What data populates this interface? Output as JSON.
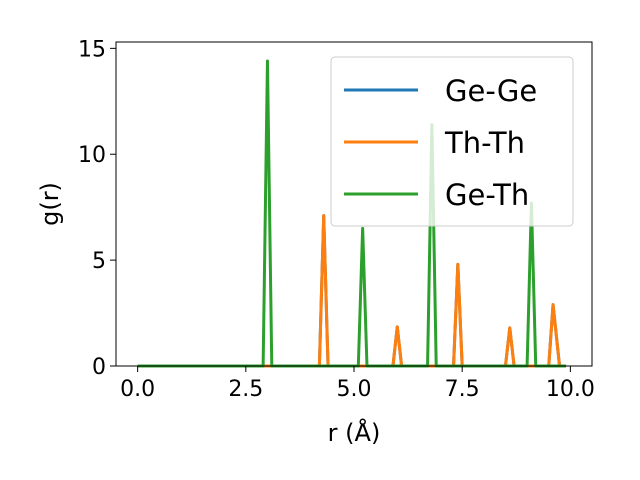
{
  "chart_data": {
    "type": "line",
    "title": "",
    "xlabel": "r (Å)",
    "ylabel": "g(r)",
    "xlim": [
      -0.5,
      10.5
    ],
    "ylim": [
      0,
      15.3
    ],
    "xticks": [
      0.0,
      2.5,
      5.0,
      7.5,
      10.0
    ],
    "xtick_labels": [
      "0.0",
      "2.5",
      "5.0",
      "7.5",
      "10.0"
    ],
    "yticks": [
      0,
      5,
      10,
      15
    ],
    "ytick_labels": [
      "0",
      "5",
      "10",
      "15"
    ],
    "grid": false,
    "legend_position": "top-right",
    "series": [
      {
        "name": "Ge-Ge",
        "color": "#1f77b4",
        "x": [
          0.0,
          4.2,
          4.3,
          4.4,
          5.9,
          6.0,
          6.1,
          7.3,
          7.4,
          7.5,
          8.5,
          8.6,
          8.7,
          9.5,
          9.6,
          9.75,
          9.9
        ],
        "y": [
          0,
          0,
          7.1,
          0,
          0,
          1.85,
          0,
          0,
          4.8,
          0,
          0,
          1.8,
          0,
          0,
          2.9,
          0,
          0
        ]
      },
      {
        "name": "Th-Th",
        "color": "#ff7f0e",
        "x": [
          0.0,
          4.2,
          4.3,
          4.4,
          5.9,
          6.0,
          6.1,
          7.3,
          7.4,
          7.5,
          8.5,
          8.6,
          8.7,
          9.5,
          9.6,
          9.75,
          9.9
        ],
        "y": [
          0,
          0,
          7.1,
          0,
          0,
          1.85,
          0,
          0,
          4.8,
          0,
          0,
          1.8,
          0,
          0,
          2.9,
          0,
          0
        ]
      },
      {
        "name": "Ge-Th",
        "color": "#2ca02c",
        "x": [
          0.0,
          2.9,
          3.0,
          3.1,
          5.1,
          5.2,
          5.3,
          6.7,
          6.8,
          6.9,
          9.0,
          9.1,
          9.2,
          9.9
        ],
        "y": [
          0,
          0,
          14.4,
          0,
          0,
          6.5,
          0,
          0,
          11.4,
          0,
          0,
          7.7,
          0,
          0
        ]
      }
    ]
  }
}
